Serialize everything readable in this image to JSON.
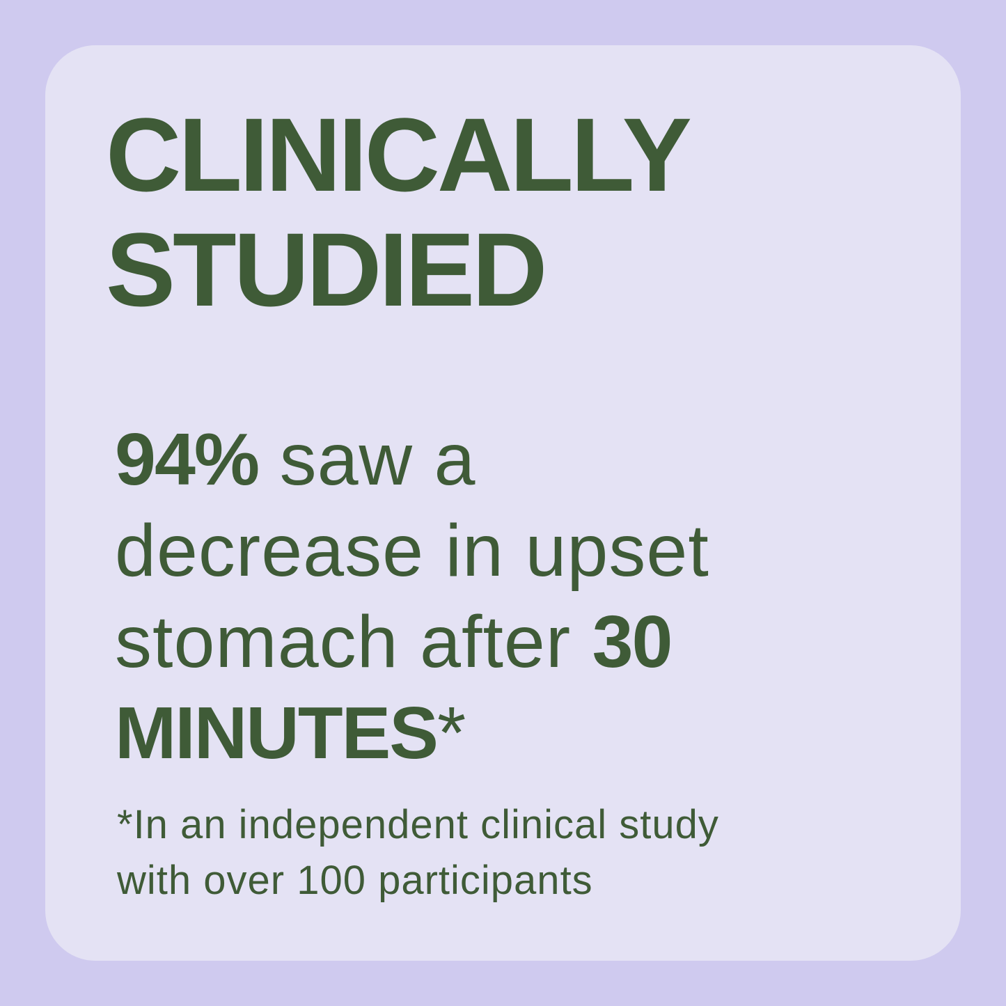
{
  "heading": {
    "lines": [
      "CLINICALLY",
      "STUDIED"
    ]
  },
  "statement": {
    "lines": [
      [
        {
          "text": "94%",
          "weight": "bold"
        },
        {
          "text": " saw a",
          "weight": "regular"
        }
      ],
      [
        {
          "text": "decrease in upset",
          "weight": "regular"
        }
      ],
      [
        {
          "text": "stomach after ",
          "weight": "regular"
        },
        {
          "text": "30",
          "weight": "bold"
        }
      ],
      [
        {
          "text": "MINUTES",
          "weight": "bold"
        },
        {
          "text": "*",
          "weight": "regular"
        }
      ]
    ]
  },
  "footnote": {
    "lines": [
      "*In an independent clinical study",
      "with over 100 participants"
    ]
  }
}
